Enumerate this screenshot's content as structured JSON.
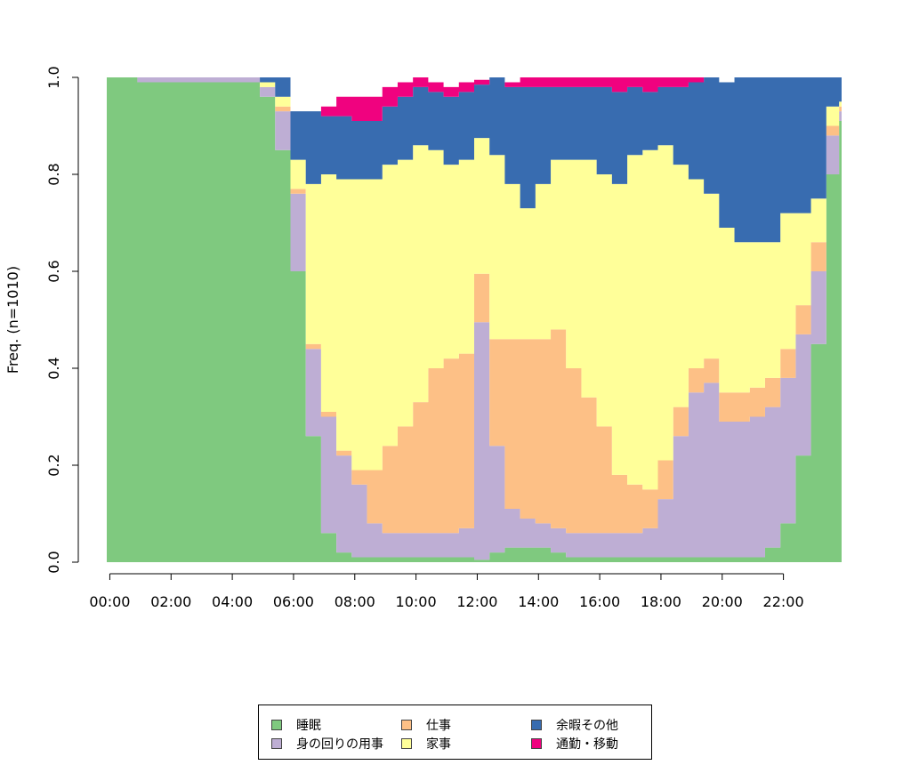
{
  "chart_data": {
    "type": "area",
    "ylabel": "Freq. (n=1010)",
    "xlabel": "",
    "ylim": [
      0,
      1
    ],
    "yticks": [
      "0.0",
      "0.2",
      "0.4",
      "0.6",
      "0.8",
      "1.0"
    ],
    "xtick_labels": [
      "00:00",
      "02:00",
      "04:00",
      "06:00",
      "08:00",
      "10:00",
      "12:00",
      "14:00",
      "16:00",
      "18:00",
      "20:00",
      "22:00"
    ],
    "x": [
      "00:00",
      "01:00",
      "02:00",
      "03:00",
      "04:00",
      "05:00",
      "05:30",
      "06:00",
      "06:30",
      "07:00",
      "07:30",
      "08:00",
      "08:30",
      "09:00",
      "09:30",
      "10:00",
      "10:30",
      "11:00",
      "11:30",
      "12:00",
      "12:30",
      "13:00",
      "13:30",
      "14:00",
      "14:30",
      "15:00",
      "15:30",
      "16:00",
      "16:30",
      "17:00",
      "17:30",
      "18:00",
      "18:30",
      "19:00",
      "19:30",
      "20:00",
      "20:30",
      "21:00",
      "21:30",
      "22:00",
      "22:30",
      "23:00",
      "23:30",
      "23:55"
    ],
    "series": [
      {
        "name": "睡眠",
        "color": "#7FC97F",
        "values": [
          1.0,
          0.99,
          0.99,
          0.99,
          0.99,
          0.96,
          0.85,
          0.6,
          0.26,
          0.06,
          0.02,
          0.01,
          0.01,
          0.01,
          0.01,
          0.01,
          0.01,
          0.01,
          0.01,
          0.005,
          0.02,
          0.03,
          0.03,
          0.03,
          0.02,
          0.01,
          0.01,
          0.01,
          0.01,
          0.01,
          0.01,
          0.01,
          0.01,
          0.01,
          0.01,
          0.01,
          0.01,
          0.01,
          0.03,
          0.08,
          0.22,
          0.45,
          0.8,
          0.91
        ]
      },
      {
        "name": "身の回りの用事",
        "color": "#BEAED4",
        "values": [
          0.0,
          0.01,
          0.01,
          0.01,
          0.01,
          0.02,
          0.08,
          0.16,
          0.18,
          0.24,
          0.2,
          0.15,
          0.07,
          0.05,
          0.05,
          0.05,
          0.05,
          0.05,
          0.06,
          0.49,
          0.22,
          0.08,
          0.06,
          0.05,
          0.05,
          0.05,
          0.05,
          0.05,
          0.05,
          0.05,
          0.06,
          0.12,
          0.25,
          0.34,
          0.36,
          0.28,
          0.28,
          0.29,
          0.29,
          0.3,
          0.25,
          0.15,
          0.08,
          0.02
        ]
      },
      {
        "name": "仕事",
        "color": "#FDC086",
        "values": [
          0.0,
          0.0,
          0.0,
          0.0,
          0.0,
          0.0,
          0.01,
          0.01,
          0.01,
          0.01,
          0.01,
          0.03,
          0.11,
          0.18,
          0.22,
          0.27,
          0.34,
          0.36,
          0.36,
          0.1,
          0.22,
          0.35,
          0.37,
          0.38,
          0.41,
          0.34,
          0.28,
          0.22,
          0.12,
          0.1,
          0.08,
          0.08,
          0.06,
          0.05,
          0.05,
          0.06,
          0.06,
          0.06,
          0.06,
          0.06,
          0.06,
          0.06,
          0.02,
          0.01
        ]
      },
      {
        "name": "家事",
        "color": "#FFFF99",
        "values": [
          0.0,
          0.0,
          0.0,
          0.0,
          0.0,
          0.01,
          0.02,
          0.06,
          0.33,
          0.49,
          0.56,
          0.6,
          0.6,
          0.58,
          0.55,
          0.53,
          0.45,
          0.4,
          0.4,
          0.28,
          0.38,
          0.32,
          0.27,
          0.32,
          0.35,
          0.43,
          0.49,
          0.52,
          0.6,
          0.68,
          0.7,
          0.65,
          0.5,
          0.39,
          0.34,
          0.34,
          0.31,
          0.3,
          0.28,
          0.28,
          0.19,
          0.09,
          0.04,
          0.01
        ]
      },
      {
        "name": "余暇その他",
        "color": "#386CB0",
        "values": [
          0.0,
          0.0,
          0.0,
          0.0,
          0.0,
          0.01,
          0.04,
          0.1,
          0.15,
          0.12,
          0.13,
          0.12,
          0.12,
          0.12,
          0.13,
          0.12,
          0.12,
          0.14,
          0.14,
          0.11,
          0.16,
          0.2,
          0.25,
          0.2,
          0.15,
          0.15,
          0.15,
          0.18,
          0.19,
          0.14,
          0.12,
          0.12,
          0.16,
          0.2,
          0.24,
          0.3,
          0.34,
          0.34,
          0.34,
          0.28,
          0.28,
          0.25,
          0.06,
          0.05
        ]
      },
      {
        "name": "通勤・移動",
        "color": "#F0027F",
        "values": [
          0.0,
          0.0,
          0.0,
          0.0,
          0.0,
          0.0,
          0.0,
          0.0,
          0.0,
          0.02,
          0.04,
          0.05,
          0.05,
          0.04,
          0.03,
          0.02,
          0.02,
          0.02,
          0.02,
          0.01,
          0.01,
          0.01,
          0.02,
          0.02,
          0.02,
          0.02,
          0.02,
          0.02,
          0.03,
          0.05,
          0.04,
          0.03,
          0.02,
          0.01,
          0.0,
          0.0,
          0.0,
          0.0,
          0.0,
          0.0,
          0.0,
          0.0,
          0.0,
          0.0
        ]
      }
    ],
    "legend_position": "bottom"
  },
  "legend": {
    "items": [
      {
        "label": "睡眠",
        "color": "#7FC97F"
      },
      {
        "label": "身の回りの用事",
        "color": "#BEAED4"
      },
      {
        "label": "仕事",
        "color": "#FDC086"
      },
      {
        "label": "家事",
        "color": "#FFFF99"
      },
      {
        "label": "余暇その他",
        "color": "#386CB0"
      },
      {
        "label": "通勤・移動",
        "color": "#F0027F"
      }
    ]
  }
}
